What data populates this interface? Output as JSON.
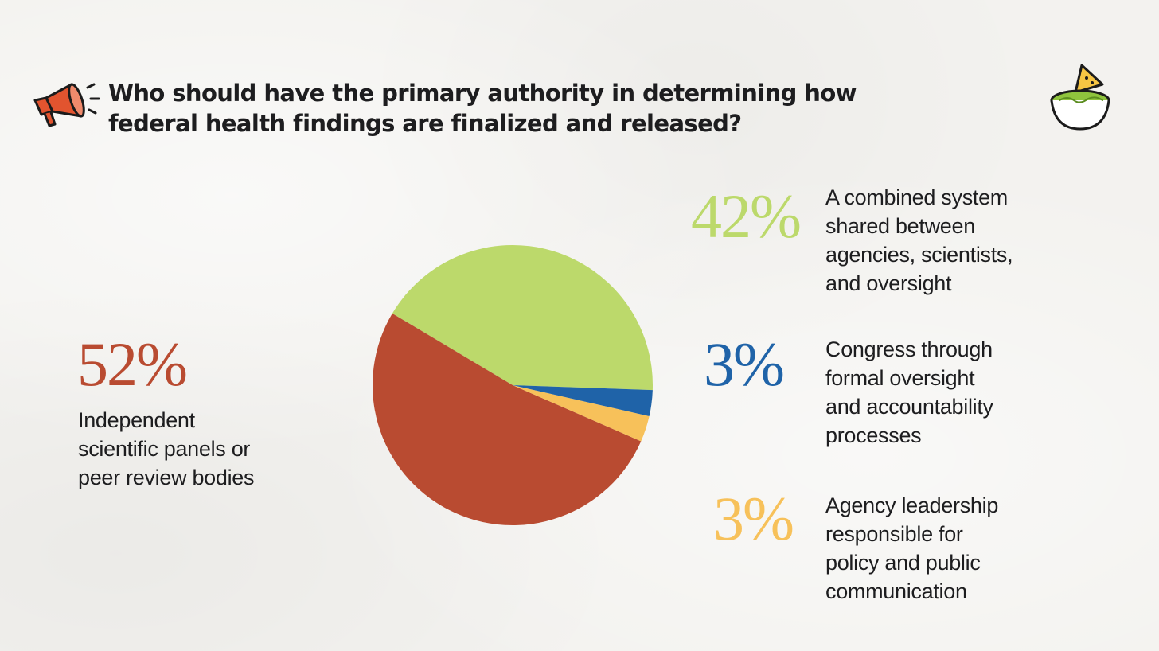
{
  "title_lines": [
    "Who should have the primary authority in determining how",
    "federal health findings are finalized and released?"
  ],
  "icons": {
    "left": "megaphone-icon",
    "right": "guacamole-bowl-icon"
  },
  "chart_data": {
    "type": "pie",
    "title": "Who should have the primary authority in determining how federal health findings are finalized and released?",
    "slices": [
      {
        "label": "A combined system shared between agencies, scientists, and oversight",
        "value": 42,
        "display": "42%",
        "color": "#bcd96b",
        "label_lines": [
          "A combined system",
          "shared between",
          "agencies, scientists,",
          "and oversight"
        ]
      },
      {
        "label": "Congress through formal oversight and accountability processes",
        "value": 3,
        "display": "3%",
        "color": "#1f63a8",
        "label_lines": [
          "Congress through",
          "formal oversight",
          "and accountability",
          "processes"
        ]
      },
      {
        "label": "Agency leadership responsible for policy and public communication",
        "value": 3,
        "display": "3%",
        "color": "#f7c15a",
        "label_lines": [
          "Agency leadership",
          "responsible for",
          "policy and public",
          "communication"
        ]
      },
      {
        "label": "Independent scientific panels or peer review bodies",
        "value": 52,
        "display": "52%",
        "color": "#b94b31",
        "label_lines": [
          "Independent",
          "scientific panels or",
          "peer review bodies"
        ]
      }
    ]
  }
}
